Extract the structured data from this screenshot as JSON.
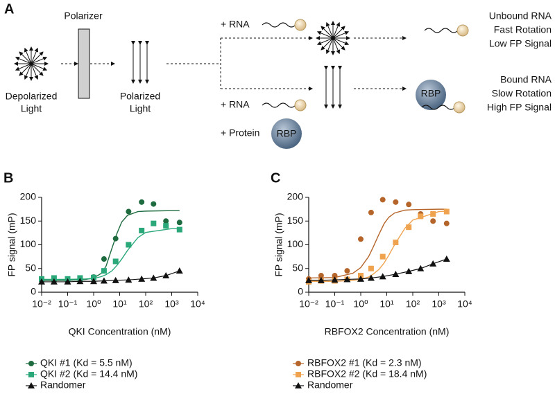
{
  "diagram": {
    "label": "A",
    "polarizer": "Polarizer",
    "source": [
      "Depolarized",
      "Light"
    ],
    "polarized": [
      "Polarized",
      "Light"
    ],
    "rna_top": "+ RNA",
    "rna_bottom": "+ RNA",
    "protein": "+ Protein",
    "rbp_protein": "RBP",
    "rbp_bound": "RBP",
    "unbound": [
      "Unbound RNA",
      "Fast Rotation",
      "Low FP Signal"
    ],
    "bound": [
      "Bound RNA",
      "Slow Rotation",
      "High FP Signal"
    ]
  },
  "chart_data": [
    {
      "type": "scatter",
      "panel": "B",
      "x_label": "QKI Concentration (nM)",
      "y_label": "FP signal (mP)",
      "x_scale": "log",
      "x": [
        0.01,
        0.03,
        0.1,
        0.3,
        1,
        2.5,
        7,
        22,
        70,
        200,
        600,
        2000
      ],
      "xlim": [
        0.01,
        10000
      ],
      "xticks": [
        {
          "value": 0.01,
          "label": "10⁻²"
        },
        {
          "value": 0.1,
          "label": "10⁻¹"
        },
        {
          "value": 1,
          "label": "10⁰"
        },
        {
          "value": 10,
          "label": "10¹"
        },
        {
          "value": 100,
          "label": "10²"
        },
        {
          "value": 1000,
          "label": "10³"
        },
        {
          "value": 10000,
          "label": "10⁴"
        }
      ],
      "ylim": [
        0,
        200
      ],
      "yticks": [
        0,
        50,
        100,
        150,
        200
      ],
      "fit_x": [
        0.01,
        0.1,
        0.5,
        1,
        2,
        3,
        5,
        8,
        12,
        20,
        50,
        100,
        1000,
        2000
      ],
      "series": [
        {
          "name": "QKI #1 (Kd = 5.5 nM)",
          "color": "#1e6b3f",
          "marker": "circle",
          "values": [
            25,
            25,
            24,
            27,
            32,
            70,
            113,
            170,
            190,
            186,
            150,
            147
          ],
          "fit": [
            25,
            25,
            27,
            30,
            40,
            55,
            92,
            125,
            148,
            162,
            170,
            171,
            172,
            172
          ]
        },
        {
          "name": "QKI #2 (Kd = 14.4 nM)",
          "color": "#2aa87a",
          "marker": "square",
          "values": [
            28,
            30,
            28,
            30,
            31,
            45,
            65,
            100,
            130,
            145,
            140,
            132
          ],
          "fit": [
            27,
            27,
            28,
            29,
            33,
            37,
            45,
            57,
            70,
            88,
            115,
            126,
            134,
            134
          ]
        },
        {
          "name": "Randomer",
          "color": "#111111",
          "marker": "triangle",
          "connect": true,
          "values": [
            22,
            22,
            22,
            23,
            23,
            24,
            25,
            26,
            28,
            30,
            35,
            45
          ]
        }
      ]
    },
    {
      "type": "scatter",
      "panel": "C",
      "x_label": "RBFOX2 Concentration (nM)",
      "y_label": "FP signal (mP)",
      "x_scale": "log",
      "x": [
        0.01,
        0.03,
        0.1,
        0.3,
        1,
        2.5,
        7,
        22,
        70,
        200,
        600,
        2000
      ],
      "xlim": [
        0.01,
        10000
      ],
      "xticks": [
        {
          "value": 0.01,
          "label": "10⁻²"
        },
        {
          "value": 0.1,
          "label": "10⁻¹"
        },
        {
          "value": 1,
          "label": "10⁰"
        },
        {
          "value": 10,
          "label": "10¹"
        },
        {
          "value": 100,
          "label": "10²"
        },
        {
          "value": 1000,
          "label": "10³"
        },
        {
          "value": 10000,
          "label": "10⁴"
        }
      ],
      "ylim": [
        0,
        200
      ],
      "yticks": [
        0,
        50,
        100,
        150,
        200
      ],
      "fit_x": [
        0.01,
        0.1,
        0.5,
        1,
        2,
        3,
        5,
        8,
        12,
        20,
        50,
        100,
        1000,
        2000
      ],
      "series": [
        {
          "name": "RBFOX2 #1 (Kd = 2.3 nM)",
          "color": "#b5652a",
          "marker": "circle",
          "values": [
            28,
            35,
            35,
            45,
            112,
            168,
            195,
            190,
            185,
            165,
            150,
            145
          ],
          "fit": [
            30,
            31,
            40,
            52,
            75,
            95,
            122,
            145,
            158,
            167,
            173,
            174,
            175,
            175
          ]
        },
        {
          "name": "RBFOX2 #2 (Kd = 18.4 nM)",
          "color": "#f0a34f",
          "marker": "square",
          "values": [
            22,
            24,
            24,
            27,
            35,
            50,
            75,
            105,
            137,
            160,
            165,
            170
          ],
          "fit": [
            23,
            23,
            25,
            27,
            32,
            38,
            48,
            62,
            78,
            100,
            135,
            152,
            170,
            171
          ]
        },
        {
          "name": "Randomer",
          "color": "#111111",
          "marker": "triangle",
          "connect": true,
          "values": [
            25,
            25,
            26,
            27,
            28,
            30,
            33,
            38,
            44,
            50,
            60,
            70
          ]
        }
      ]
    }
  ]
}
